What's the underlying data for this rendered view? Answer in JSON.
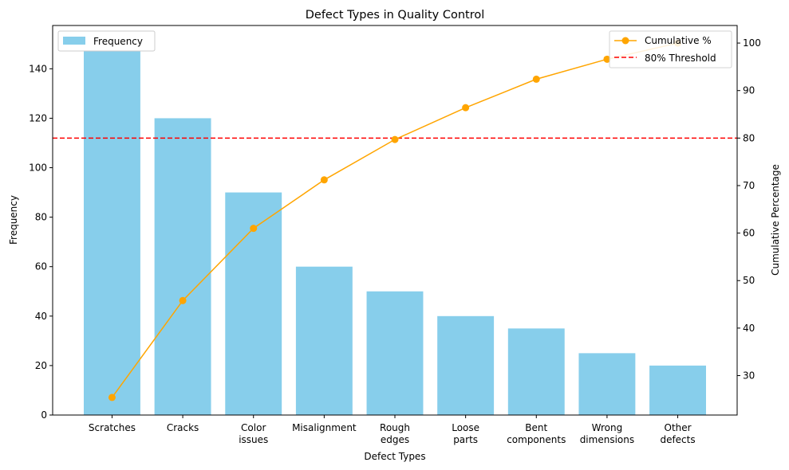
{
  "chart_data": {
    "type": "bar",
    "title": "Defect Types in Quality Control",
    "xlabel": "Defect Types",
    "ylabel": "Frequency",
    "y2label": "Cumulative Percentage",
    "categories": [
      "Scratches",
      "Cracks",
      "Color\nissues",
      "Misalignment",
      "Rough\nedges",
      "Loose\nparts",
      "Bent\ncomponents",
      "Wrong\ndimensions",
      "Other\ndefects"
    ],
    "series": [
      {
        "name": "Frequency",
        "type": "bar",
        "axis": "left",
        "color": "#87ceeb",
        "values": [
          150,
          120,
          90,
          60,
          50,
          40,
          35,
          25,
          20
        ]
      },
      {
        "name": "Cumulative %",
        "type": "line",
        "axis": "right",
        "color": "#ffa500",
        "marker": "circle",
        "values": [
          25.4,
          45.8,
          61.0,
          71.2,
          79.7,
          86.4,
          92.4,
          96.6,
          100.0
        ]
      }
    ],
    "threshold": {
      "name": "80% Threshold",
      "value": 80,
      "axis": "right",
      "color": "#ff0000",
      "style": "dashed"
    },
    "ylim": [
      0,
      157.5
    ],
    "y2lim": [
      21.7,
      103.7
    ],
    "yticks": [
      0,
      20,
      40,
      60,
      80,
      100,
      120,
      140
    ],
    "y2ticks": [
      30,
      40,
      50,
      60,
      70,
      80,
      90,
      100
    ],
    "grid": false,
    "legend_left": "top-left",
    "legend_right": "top-right"
  }
}
